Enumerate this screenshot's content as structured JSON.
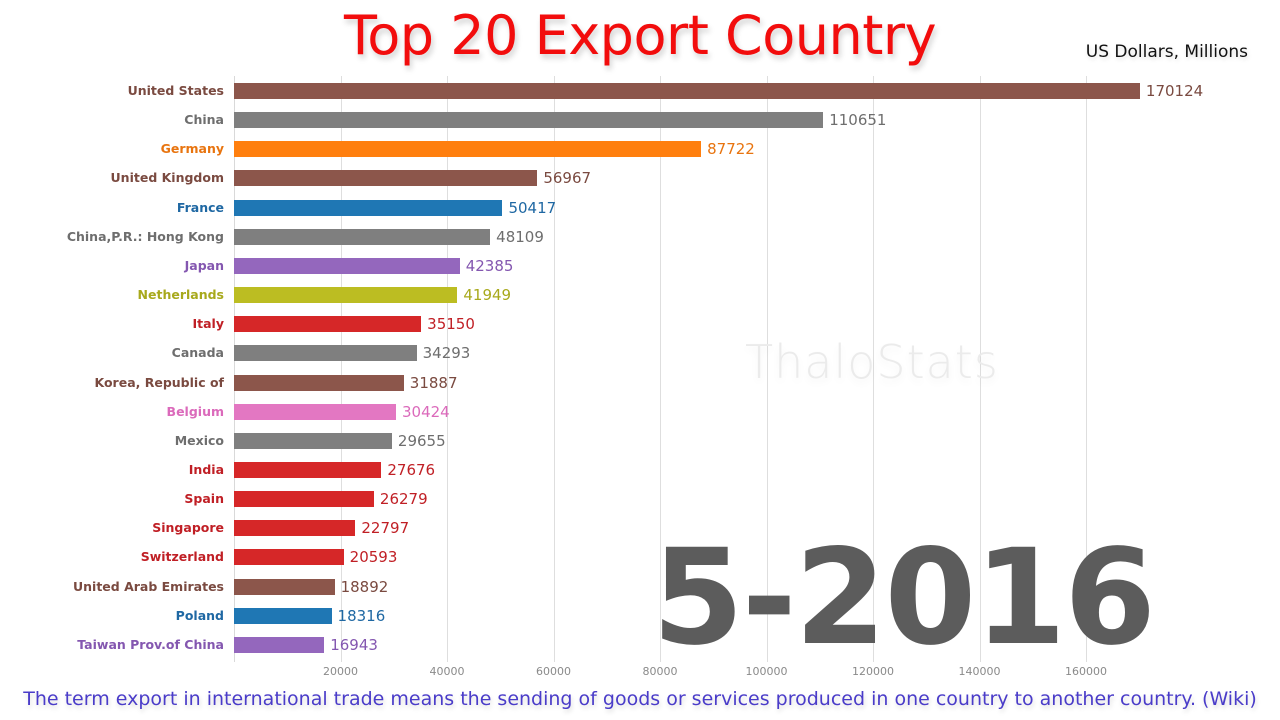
{
  "header": {
    "title": "Top 20 Export Country",
    "units": "US Dollars, Millions"
  },
  "watermark": "ThaloStats",
  "period_label": "5-2016",
  "caption": "The term export in international trade means the sending of goods or services produced in one country to another country. (Wiki)",
  "axis": {
    "ticks": [
      "20000",
      "40000",
      "60000",
      "80000",
      "100000",
      "120000",
      "140000",
      "160000"
    ]
  },
  "colors": {
    "brown": "#8c564b",
    "gray": "#7f7f7f",
    "orange": "#ff7f0e",
    "blue": "#1f77b4",
    "purple": "#9467bd",
    "olive": "#bcbd22",
    "red": "#d62728",
    "pink": "#e377c2"
  },
  "chart_data": {
    "type": "bar",
    "orientation": "horizontal",
    "title": "Top 20 Export Country",
    "subtitle": "US Dollars, Millions",
    "period": "5-2016",
    "xlabel": "",
    "ylabel": "",
    "xlim": [
      0,
      170124
    ],
    "grid": true,
    "categories": [
      "United States",
      "China",
      "Germany",
      "United Kingdom",
      "France",
      "China,P.R.: Hong Kong",
      "Japan",
      "Netherlands",
      "Italy",
      "Canada",
      "Korea, Republic of",
      "Belgium",
      "Mexico",
      "India",
      "Spain",
      "Singapore",
      "Switzerland",
      "United Arab Emirates",
      "Poland",
      "Taiwan Prov.of China"
    ],
    "values": [
      170124,
      110651,
      87722,
      56967,
      50417,
      48109,
      42385,
      41949,
      35150,
      34293,
      31887,
      30424,
      29655,
      27676,
      26279,
      22797,
      20593,
      18892,
      18316,
      16943
    ],
    "bar_colors": [
      "#8c564b",
      "#7f7f7f",
      "#ff7f0e",
      "#8c564b",
      "#1f77b4",
      "#7f7f7f",
      "#9467bd",
      "#bcbd22",
      "#d62728",
      "#7f7f7f",
      "#8c564b",
      "#e377c2",
      "#7f7f7f",
      "#d62728",
      "#d62728",
      "#d62728",
      "#d62728",
      "#8c564b",
      "#1f77b4",
      "#9467bd"
    ],
    "x_ticks": [
      20000,
      40000,
      60000,
      80000,
      100000,
      120000,
      140000,
      160000
    ]
  },
  "rows": [
    {
      "country": "United States",
      "value": "170124",
      "num": 170124,
      "color": "#8c564b",
      "text": "#7a4a40"
    },
    {
      "country": "China",
      "value": "110651",
      "num": 110651,
      "color": "#7f7f7f",
      "text": "#6e6e6e"
    },
    {
      "country": "Germany",
      "value": "87722",
      "num": 87722,
      "color": "#ff7f0e",
      "text": "#e8740f"
    },
    {
      "country": "United Kingdom",
      "value": "56967",
      "num": 56967,
      "color": "#8c564b",
      "text": "#7a4a40"
    },
    {
      "country": "France",
      "value": "50417",
      "num": 50417,
      "color": "#1f77b4",
      "text": "#1f68a3"
    },
    {
      "country": "China,P.R.: Hong Kong",
      "value": "48109",
      "num": 48109,
      "color": "#7f7f7f",
      "text": "#6e6e6e"
    },
    {
      "country": "Japan",
      "value": "42385",
      "num": 42385,
      "color": "#9467bd",
      "text": "#8457b0"
    },
    {
      "country": "Netherlands",
      "value": "41949",
      "num": 41949,
      "color": "#bcbd22",
      "text": "#a8a91c"
    },
    {
      "country": "Italy",
      "value": "35150",
      "num": 35150,
      "color": "#d62728",
      "text": "#c01f25"
    },
    {
      "country": "Canada",
      "value": "34293",
      "num": 34293,
      "color": "#7f7f7f",
      "text": "#6e6e6e"
    },
    {
      "country": "Korea, Republic of",
      "value": "31887",
      "num": 31887,
      "color": "#8c564b",
      "text": "#7a4a40"
    },
    {
      "country": "Belgium",
      "value": "30424",
      "num": 30424,
      "color": "#e377c2",
      "text": "#db6abb"
    },
    {
      "country": "Mexico",
      "value": "29655",
      "num": 29655,
      "color": "#7f7f7f",
      "text": "#6e6e6e"
    },
    {
      "country": "India",
      "value": "27676",
      "num": 27676,
      "color": "#d62728",
      "text": "#c01f25"
    },
    {
      "country": "Spain",
      "value": "26279",
      "num": 26279,
      "color": "#d62728",
      "text": "#c01f25"
    },
    {
      "country": "Singapore",
      "value": "22797",
      "num": 22797,
      "color": "#d62728",
      "text": "#c01f25"
    },
    {
      "country": "Switzerland",
      "value": "20593",
      "num": 20593,
      "color": "#d62728",
      "text": "#c01f25"
    },
    {
      "country": "United Arab Emirates",
      "value": "18892",
      "num": 18892,
      "color": "#8c564b",
      "text": "#7a4a40"
    },
    {
      "country": "Poland",
      "value": "18316",
      "num": 18316,
      "color": "#1f77b4",
      "text": "#1f68a3"
    },
    {
      "country": "Taiwan Prov.of China",
      "value": "16943",
      "num": 16943,
      "color": "#9467bd",
      "text": "#8457b0"
    }
  ]
}
